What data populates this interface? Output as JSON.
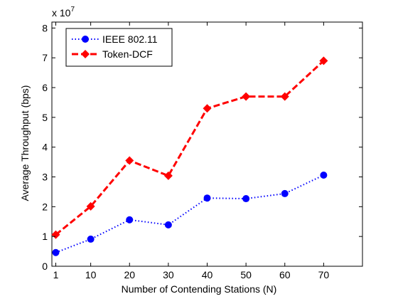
{
  "chart_data": {
    "type": "line",
    "xlabel": "Number of Contending Stations (N)",
    "ylabel": "Average Throughput (bps)",
    "y_exponent_label": "x 10",
    "y_exponent_power": "7",
    "x": [
      1,
      10,
      20,
      30,
      40,
      50,
      60,
      70
    ],
    "x_tick_labels": [
      "1",
      "10",
      "20",
      "30",
      "40",
      "50",
      "60",
      "70"
    ],
    "xlim": [
      0,
      80
    ],
    "ylim": [
      0,
      8.2
    ],
    "y_ticks": [
      0,
      1,
      2,
      3,
      4,
      5,
      6,
      7,
      8
    ],
    "y_tick_labels": [
      "0",
      "1",
      "2",
      "3",
      "4",
      "5",
      "6",
      "7",
      "8"
    ],
    "y_scale_note": "values in units of 10^7 bps",
    "grid": false,
    "legend_position": "top-left",
    "series": [
      {
        "name": "IEEE 802.11",
        "color": "#0000ff",
        "line_style": "dotted",
        "marker": "circle",
        "values": [
          0.46,
          0.91,
          1.56,
          1.39,
          2.29,
          2.27,
          2.44,
          3.06
        ]
      },
      {
        "name": "Token-DCF",
        "color": "#ff0000",
        "line_style": "dashed",
        "marker": "diamond",
        "values": [
          1.06,
          2.01,
          3.55,
          3.04,
          5.3,
          5.7,
          5.7,
          6.9
        ]
      }
    ]
  }
}
